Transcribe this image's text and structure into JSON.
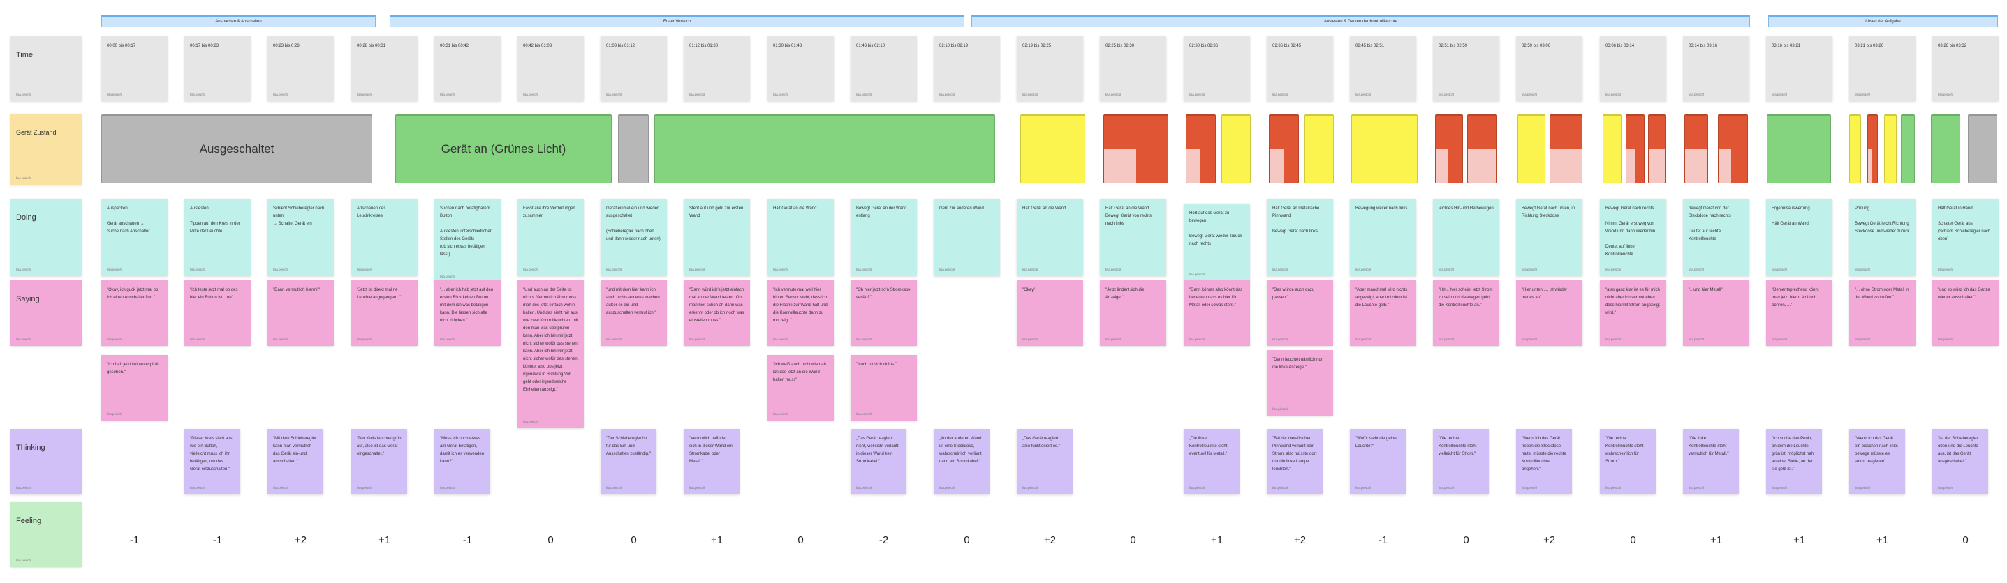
{
  "author": "lisa.peischl",
  "phases": [
    {
      "label": "Auspacken & Anschalten"
    },
    {
      "label": "Erster Versuch"
    },
    {
      "label": "Austesten & Deuten der Kontrollleuchte"
    },
    {
      "label": "Lösen der Aufgabe"
    }
  ],
  "rows": {
    "time": "Time",
    "gerat_zustand": "Gerät Zustand",
    "doing": "Doing",
    "saying": "Saying",
    "thinking": "Thinking",
    "feeling": "Feeling"
  },
  "state_colors": {
    "off": "#b7b7b7",
    "green": "#84d47f",
    "yellow": "#fbf44f",
    "red": "#e05533",
    "red_light": "#f6c8c3"
  },
  "gerat_blocks": [
    {
      "state": "off",
      "label": "Ausgeschaltet"
    },
    {
      "state": "green",
      "label": "Gerät an (Grünes Licht)"
    },
    {
      "state": "off"
    },
    {
      "state": "green"
    },
    {
      "state": "yellow"
    },
    {
      "state": "red",
      "lower_light": "left"
    },
    {
      "state": "red",
      "lower_light": "left"
    },
    {
      "state": "yellow"
    },
    {
      "state": "red",
      "lower_light": "left"
    },
    {
      "state": "yellow"
    },
    {
      "state": "yellow"
    },
    {
      "state": "red",
      "lower_light": "left"
    },
    {
      "state": "red",
      "lower_light": "full"
    },
    {
      "state": "yellow"
    },
    {
      "state": "red",
      "lower_light": "full"
    },
    {
      "state": "yellow"
    },
    {
      "state": "red",
      "lower_light": "left"
    },
    {
      "state": "red",
      "lower_light": "full"
    },
    {
      "state": "red",
      "lower_light": "full"
    },
    {
      "state": "red",
      "lower_light": "left"
    },
    {
      "state": "green"
    },
    {
      "state": "yellow"
    },
    {
      "state": "red",
      "lower_light": "left"
    },
    {
      "state": "yellow"
    },
    {
      "state": "green"
    },
    {
      "state": "green"
    },
    {
      "state": "off"
    }
  ],
  "columns": [
    {
      "time": "00:00 bis 00:17",
      "doing": "Auspacken\n\nGerät anschauen →\nSuche nach Anschalter",
      "saying": [
        "\"Okay, ich guck jetzt mal ob ich einen Anschalter find.\"",
        "\"Ich hab jetzt keinen explizit gesehen.\""
      ],
      "thinking": "",
      "feeling": "-1"
    },
    {
      "time": "00:17 bis 00:23",
      "doing": "Austesten\n\nTippen auf den Kreis in der Mitte der Leuchte",
      "saying": [
        "\"Ich teste jetzt mal ob des hier ein Button ist... ne\""
      ],
      "thinking": "\"Dieser Kreis sieht aus wie ein Button, vielleicht muss ich ihn betätigen, um das Gerät einzuschalten.\"",
      "feeling": "-1"
    },
    {
      "time": "00:23 bis 0:28",
      "doing": "Schiebt Schieberegler nach unten\n→ Schaltet Gerät ein",
      "saying": [
        "\"Dann vermutlich hiermit\""
      ],
      "thinking": "\"Mit dem Schieberegler kann man vermutlich das Gerät ein-und ausschalten.\"",
      "feeling": "+2"
    },
    {
      "time": "00:28 bis 00:31",
      "doing": "Anschauen des Leuchtkreises",
      "saying": [
        "\"Jetzt ist direkt mal ne Leuchte angegangen...\""
      ],
      "thinking": "\"Der Kreis leuchtet grün auf, also ist das Gerät eingeschaltet.\"",
      "feeling": "+1"
    },
    {
      "time": "00:31 bis 00:42",
      "doing": "Suchen nach betätigbarem Button\n\nAustesten unterschiedlicher Stellen des Geräts\n(ob sich etwas betätigen lässt)",
      "saying": [
        "\"... aber ich hab jetzt auf den ersten Blick keinen Button mit dem ich was betätigen kann. Die lassen sich alle nicht drücken.\""
      ],
      "thinking": "\"Muss ich noch etwas am Gerät betätigen, damit ich es verwenden kann?\"",
      "feeling": "-1"
    },
    {
      "time": "00:42 bis 01:03",
      "doing": "Fasst alle ihre Vermutungen zusammen",
      "saying": [
        "\"Und auch an der Seite ist nichts. Vermutlich ähm muss man des jetzt einfach wohin halten. Und das sieht mir aus wie zwei Kontrollleuchten, mit den man was überprüfen kann. Aber ich bin mir jetzt nicht sicher wofür das stehen kann. Aber ich bin mir jetzt nicht sicher wofür des stehen könnte, also obs jetzt irgendwie in Richtung Volt geht oder irgendwelche Einheiten anzeigt.\""
      ],
      "thinking": "",
      "feeling": "0"
    },
    {
      "time": "01:03 bis 01:12",
      "doing": "Gerät einmal ein und wieder ausgeschaltet\n\n(Schieberegler nach oben und dann wieder nach unten)",
      "saying": [
        "\"und mit dem hier kann ich auch nichts anderes machen außer es ein und auszuschalten vermut ich.\""
      ],
      "thinking": "\"Der Schieberegler ist für das Ein-und Ausschalten zuständig.\"",
      "feeling": "0"
    },
    {
      "time": "01:12 bis 01:30",
      "doing": "Steht auf und geht zur ersten Wand",
      "saying": [
        "\"Dann würd ich's jetzt einfach mal an der Wand testen. Ob man hier schon äh dann was erkennt oder ob ich noch was einstellen muss.\""
      ],
      "thinking": "\"Vermutlich befindet sich in dieser Wand ein Stromkabel oder Metall.\"",
      "feeling": "+1"
    },
    {
      "time": "01:30 bis 01:43",
      "doing": "Hält Gerät an die Wand",
      "saying": [
        "\"Ich vermute mal weil hier hinten Sensor steht; dass ich die Fläche zur Wand halt und die Kontrollleuchte dann zu mir zeigt.\"",
        "\"Ich weiß auch nicht wie nah ich das jetzt an die Wand halten muss\""
      ],
      "thinking": "",
      "feeling": "0"
    },
    {
      "time": "01:43 bis 02:10",
      "doing": "Bewegt Gerät an der Wand entlang",
      "saying": [
        "\"Ob hier jetzt so'n Stromkabel verläuft\"",
        "\"Noch tut sich nichts.\""
      ],
      "thinking": "„Das Gerät reagiert nicht, vielleicht verläuft in dieser Wand kein Stromkabel.“",
      "feeling": "-2"
    },
    {
      "time": "02:10 bis 02:19",
      "doing": "Geht zur anderen Wand",
      "saying": [],
      "thinking": "„An der anderen Wand ist eine Steckdose, wahrscheinlich verläuft darin ein Stromkabel.“",
      "feeling": "0"
    },
    {
      "time": "02:19 bis 02:25",
      "doing": "Hält Gerät an die Wand",
      "saying": [
        "\"Okay\""
      ],
      "thinking": "„Das Gerät reagiert. also funktioniert es.“",
      "feeling": "+2"
    },
    {
      "time": "02:25 bis 02:30",
      "doing": "Hält Gerät an die Wand\nBewegt Gerät von rechts nach links",
      "saying": [
        "\"Jetzt ändert sich die Anzeige.\""
      ],
      "thinking": "",
      "feeling": "0"
    },
    {
      "time": "02:30 bis 02:36",
      "doing": "Hört auf das Gerät zu bewegen\n\nBewegt Gerät wieder zurück nach rechts",
      "saying": [
        "\"Dann könnts also könnt das bedeuten dass es hier für Metall oder sowas steht.\""
      ],
      "thinking": "„Die linke Kontrollleuchte steht eventuell für Metall.“",
      "feeling": "+1"
    },
    {
      "time": "02:36 bis 02:45",
      "doing": "Hält Gerät an metallische Pinnwand\n\nBewegt Gerät nach links",
      "saying": [
        "\"Das würde auch dazu passen.\"",
        "\"Dann leuchtet nämlich nur die linke Anzeige.\""
      ],
      "thinking": "\"Bei der metallischen Pinnwand verläuft kein Strom, also müsste dort nur die linke Lampe leuchten.\"",
      "feeling": "+2"
    },
    {
      "time": "02:45 bis 02:51",
      "doing": "Bewegung weiter nach links",
      "saying": [
        "\"Aber manchmal wird nichts angezeigt, aber trotzdem ist die Leuchte gelb.\""
      ],
      "thinking": "\"Wofür steht die gelbe Leuchte?\"",
      "feeling": "-1"
    },
    {
      "time": "02:51 bis 02:59",
      "doing": "leichtes Hin-und Herbewegen",
      "saying": [
        "\"Hm.. hier scheint jetzt Strom zu sein und deswegen geht die Kontrollleuchte an.\""
      ],
      "thinking": "\"Die rechte Kontrollleuchte steht vielleicht für Strom.\"",
      "feeling": "0"
    },
    {
      "time": "02:59 bis 03:06",
      "doing": "Bewegt Gerät nach unten, in Richtung Steckdose",
      "saying": [
        "\"Hier unten .... ist wieder beides an\""
      ],
      "thinking": "\"Wenn ich das Gerät neben die Steckdose halte, müsste die rechte Kontrollleuchte angehen.\"",
      "feeling": "+2"
    },
    {
      "time": "03:06 bis 03:14",
      "doing": "Bewegt Gerät nach rechts\n\nNimmt Gerät erst weg von Wand und dann wieder hin\n\nDeutet auf linke Kontrollleuchte",
      "saying": [
        "\"also ganz klar ist es für mich nicht aber ich vermut eben dass hiermit Strom angezeigt wird.\""
      ],
      "thinking": "\"Die rechte Kontrollleuchte steht wahrscheinlich für Strom.\"",
      "feeling": "0"
    },
    {
      "time": "03:14 bis 03:16",
      "doing": "bewegt Gerät von der Steckdose nach rechts\n\nDeutet auf rechte Kontrollleuchte",
      "saying": [
        "\".. und hier Metall\""
      ],
      "thinking": "\"Die linke Kontrollleuchte steht vermutlich für Metall.\"",
      "feeling": "+1"
    },
    {
      "time": "03:16 bis 03:21",
      "doing": "Ergebnisauswertung\n\nHält Gerät an Wand",
      "saying": [
        "\"Dementsprechend könnt man jetzt hier n äh Loch bohren, ...\""
      ],
      "thinking": "\"Ich suche den Punkt, an dem die Leuchte grün ist, möglichst nah an einer Stelle, an der sie gelb ist.\"",
      "feeling": "+1"
    },
    {
      "time": "03:21 bis 03:26",
      "doing": "Prüfung\n\nBewegt Gerät leicht Richtung Steckdose und wieder zurück",
      "saying": [
        "\"... ohne Strom oder Metall in der Wand zu treffen.\""
      ],
      "thinking": "\"Wenn ich das Gerät ein bisschen nach links bewege müsste es sofort reagieren\"",
      "feeling": "+1"
    },
    {
      "time": "03:26 bis 03:32",
      "doing": "Hält Gerät in Hand\n\nSchaltet Gerät aus\n(Schiebt Schieberegler nach oben)",
      "saying": [
        "\"und so würd ich das Ganze wieder ausschalten\""
      ],
      "thinking": "\"Ist der Schieberegler oben und die Leuchte aus, ist das Gerät ausgeschaltet.\"",
      "feeling": "0"
    }
  ]
}
